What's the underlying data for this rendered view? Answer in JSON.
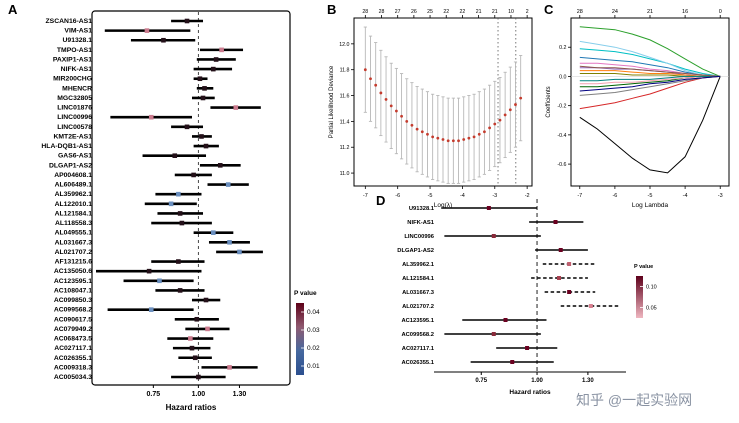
{
  "figure": {
    "watermark": "知乎 @一起实验网"
  },
  "panels": {
    "a": "A",
    "b": "B",
    "c": "C",
    "d": "D"
  },
  "chart_data": [
    {
      "id": "A",
      "type": "forest",
      "xlabel": "Hazard ratios",
      "xlim": [
        0.52,
        1.75
      ],
      "ref_line": 1.0,
      "xticks": [
        0.75,
        1.0,
        1.3
      ],
      "xtick_labels": [
        "0.75",
        "1.00",
        "1.30"
      ],
      "legend": {
        "title": "P value",
        "tick_labels": [
          "0.04",
          "0.03",
          "0.02",
          "0.01"
        ],
        "colors": [
          "#5e0018",
          "#8f5a70",
          "#46699f",
          "#2c4f8f"
        ]
      },
      "rows": [
        {
          "label": "ZSCAN16-AS1",
          "hr": 0.93,
          "lo": 0.84,
          "hi": 1.03,
          "color": "#241019"
        },
        {
          "label": "VIM-AS1",
          "hr": 0.72,
          "lo": 0.55,
          "hi": 0.95,
          "color": "#cb7b8e"
        },
        {
          "label": "U91328.1",
          "hr": 0.8,
          "lo": 0.65,
          "hi": 0.98,
          "color": "#241019"
        },
        {
          "label": "TMPO-AS1",
          "hr": 1.16,
          "lo": 1.01,
          "hi": 1.33,
          "color": "#cb7b8e"
        },
        {
          "label": "PAXIP1-AS1",
          "hr": 1.12,
          "lo": 0.99,
          "hi": 1.27,
          "color": "#241019"
        },
        {
          "label": "NIFK-AS1",
          "hr": 1.1,
          "lo": 0.97,
          "hi": 1.24,
          "color": "#241019"
        },
        {
          "label": "MIR200CHG",
          "hr": 1.01,
          "lo": 0.97,
          "hi": 1.06,
          "color": "#241019"
        },
        {
          "label": "MHENCR",
          "hr": 1.04,
          "lo": 0.99,
          "hi": 1.1,
          "color": "#241019"
        },
        {
          "label": "MGC32805",
          "hr": 1.03,
          "lo": 0.96,
          "hi": 1.11,
          "color": "#241019"
        },
        {
          "label": "LINC01876",
          "hr": 1.27,
          "lo": 1.08,
          "hi": 1.49,
          "color": "#cb7b8e"
        },
        {
          "label": "LINC00996",
          "hr": 0.74,
          "lo": 0.57,
          "hi": 0.96,
          "color": "#cb7b8e"
        },
        {
          "label": "LINC00578",
          "hr": 0.93,
          "lo": 0.84,
          "hi": 1.03,
          "color": "#241019"
        },
        {
          "label": "KMT2E-AS1",
          "hr": 1.02,
          "lo": 0.96,
          "hi": 1.09,
          "color": "#241019"
        },
        {
          "label": "HLA-DQB1-AS1",
          "hr": 1.05,
          "lo": 0.97,
          "hi": 1.14,
          "color": "#241019"
        },
        {
          "label": "GAS6-AS1",
          "hr": 0.86,
          "lo": 0.7,
          "hi": 1.05,
          "color": "#241019"
        },
        {
          "label": "DLGAP1-AS2",
          "hr": 1.15,
          "lo": 1.01,
          "hi": 1.31,
          "color": "#241019"
        },
        {
          "label": "AP004608.1",
          "hr": 0.97,
          "lo": 0.86,
          "hi": 1.09,
          "color": "#241019"
        },
        {
          "label": "AL606489.1",
          "hr": 1.21,
          "lo": 1.06,
          "hi": 1.38,
          "color": "#6a8fbf"
        },
        {
          "label": "AL359962.1",
          "hr": 0.88,
          "lo": 0.76,
          "hi": 1.02,
          "color": "#6a8fbf"
        },
        {
          "label": "AL122010.1",
          "hr": 0.84,
          "lo": 0.71,
          "hi": 0.99,
          "color": "#6a8fbf"
        },
        {
          "label": "AL121584.1",
          "hr": 0.89,
          "lo": 0.77,
          "hi": 1.03,
          "color": "#241019"
        },
        {
          "label": "AL118558.3",
          "hr": 0.9,
          "lo": 0.74,
          "hi": 1.09,
          "color": "#241019"
        },
        {
          "label": "AL049555.1",
          "hr": 1.1,
          "lo": 0.97,
          "hi": 1.25,
          "color": "#6a8fbf"
        },
        {
          "label": "AL031667.3",
          "hr": 1.22,
          "lo": 1.07,
          "hi": 1.39,
          "color": "#6a8fbf"
        },
        {
          "label": "AL021707.2",
          "hr": 1.3,
          "lo": 1.12,
          "hi": 1.51,
          "color": "#6a8fbf"
        },
        {
          "label": "AF131215.6",
          "hr": 0.88,
          "lo": 0.74,
          "hi": 1.04,
          "color": "#241019"
        },
        {
          "label": "AC135050.6",
          "hr": 0.73,
          "lo": 0.52,
          "hi": 1.02,
          "color": "#241019"
        },
        {
          "label": "AC123595.1",
          "hr": 0.78,
          "lo": 0.62,
          "hi": 0.97,
          "color": "#6a8fbf"
        },
        {
          "label": "AC108047.1",
          "hr": 0.89,
          "lo": 0.76,
          "hi": 1.04,
          "color": "#241019"
        },
        {
          "label": "AC099850.3",
          "hr": 1.05,
          "lo": 0.96,
          "hi": 1.15,
          "color": "#241019"
        },
        {
          "label": "AC099568.2",
          "hr": 0.74,
          "lo": 0.56,
          "hi": 0.97,
          "color": "#6a8fbf"
        },
        {
          "label": "AC090617.5",
          "hr": 0.99,
          "lo": 0.86,
          "hi": 1.14,
          "color": "#241019"
        },
        {
          "label": "AC079949.2",
          "hr": 1.06,
          "lo": 0.92,
          "hi": 1.22,
          "color": "#cb7b8e"
        },
        {
          "label": "AC068473.5",
          "hr": 0.95,
          "lo": 0.82,
          "hi": 1.1,
          "color": "#cb7b8e"
        },
        {
          "label": "AC027117.1",
          "hr": 0.96,
          "lo": 0.85,
          "hi": 1.08,
          "color": "#241019"
        },
        {
          "label": "AC026355.1",
          "hr": 0.98,
          "lo": 0.88,
          "hi": 1.09,
          "color": "#241019"
        },
        {
          "label": "AC009318.3",
          "hr": 1.22,
          "lo": 1.02,
          "hi": 1.46,
          "color": "#cb7b8e"
        },
        {
          "label": "AC005034.3",
          "hr": 1.0,
          "lo": 0.84,
          "hi": 1.19,
          "color": "#241019"
        }
      ]
    },
    {
      "id": "B",
      "type": "scatter",
      "xlabel": "Log(λ)",
      "ylabel": "Partial Likelihood Deviance",
      "xlim": [
        -7.35,
        -1.85
      ],
      "ylim": [
        10.9,
        12.2
      ],
      "xticks": [
        -7,
        -6,
        -5,
        -4,
        -3,
        -2
      ],
      "yticks": [
        11.0,
        11.2,
        11.4,
        11.6,
        11.8,
        12.0
      ],
      "ytick_labels": [
        "11.0",
        "11.2",
        "11.4",
        "11.6",
        "11.8",
        "12.0"
      ],
      "top_ticks": {
        "x": [
          -7,
          -6.5,
          -6,
          -5.5,
          -5,
          -4.5,
          -4,
          -3.5,
          -3,
          -2.5,
          -2
        ],
        "labels": [
          "28",
          "28",
          "27",
          "26",
          "25",
          "22",
          "22",
          "21",
          "21",
          "10",
          "2"
        ]
      },
      "vlines": [
        -2.9,
        -2.35
      ],
      "x": [
        -7.0,
        -6.84,
        -6.68,
        -6.52,
        -6.36,
        -6.2,
        -6.04,
        -5.88,
        -5.72,
        -5.56,
        -5.4,
        -5.24,
        -5.08,
        -4.92,
        -4.76,
        -4.6,
        -4.44,
        -4.28,
        -4.12,
        -3.96,
        -3.8,
        -3.64,
        -3.48,
        -3.32,
        -3.16,
        -3.0,
        -2.84,
        -2.68,
        -2.52,
        -2.36,
        -2.2
      ],
      "y": [
        11.8,
        11.73,
        11.68,
        11.62,
        11.57,
        11.52,
        11.48,
        11.44,
        11.4,
        11.37,
        11.34,
        11.32,
        11.3,
        11.28,
        11.27,
        11.26,
        11.25,
        11.25,
        11.25,
        11.26,
        11.27,
        11.28,
        11.3,
        11.32,
        11.35,
        11.38,
        11.41,
        11.45,
        11.49,
        11.53,
        11.58
      ],
      "err": 0.33,
      "point_color": "#c43c2e",
      "bar_color": "#b8b8b8"
    },
    {
      "id": "C",
      "type": "line",
      "xlabel": "Log Lambda",
      "ylabel": "Coefficients",
      "xlim": [
        -7.25,
        -2.75
      ],
      "ylim": [
        -0.75,
        0.4
      ],
      "xticks": [
        -7,
        -6,
        -5,
        -4,
        -3
      ],
      "yticks": [
        0.2,
        0.0,
        -0.2,
        -0.4,
        -0.6
      ],
      "ytick_labels": [
        "0.2",
        "0.0",
        "-0.2",
        "-0.4",
        "-0.6"
      ],
      "top_ticks": {
        "x": [
          -7,
          -6,
          -5,
          -4,
          -3
        ],
        "labels": [
          "28",
          "24",
          "21",
          "16",
          "0"
        ]
      },
      "series_x": [
        -7,
        -6.5,
        -6,
        -5.5,
        -5,
        -4.5,
        -4,
        -3.5,
        -3
      ],
      "series": [
        {
          "color": "#000000",
          "y": [
            -0.28,
            -0.36,
            -0.46,
            -0.56,
            -0.64,
            -0.66,
            -0.55,
            -0.3,
            0
          ]
        },
        {
          "color": "#2ca02c",
          "y": [
            0.34,
            0.33,
            0.32,
            0.29,
            0.25,
            0.19,
            0.12,
            0.05,
            0
          ]
        },
        {
          "color": "#00bfc4",
          "y": [
            0.19,
            0.18,
            0.17,
            0.15,
            0.12,
            0.09,
            0.05,
            0.02,
            0
          ]
        },
        {
          "color": "#d62728",
          "y": [
            -0.22,
            -0.2,
            -0.18,
            -0.15,
            -0.12,
            -0.08,
            -0.04,
            -0.01,
            0
          ]
        },
        {
          "color": "#1f77b4",
          "y": [
            0.13,
            0.12,
            0.11,
            0.1,
            0.08,
            0.06,
            0.03,
            0.01,
            0
          ]
        },
        {
          "color": "#e377c2",
          "y": [
            0.09,
            0.09,
            0.08,
            0.07,
            0.05,
            0.04,
            0.02,
            0.01,
            0
          ]
        },
        {
          "color": "#7f7f7f",
          "y": [
            -0.13,
            -0.12,
            -0.11,
            -0.09,
            -0.07,
            -0.05,
            -0.03,
            -0.01,
            0
          ]
        },
        {
          "color": "#9467bd",
          "y": [
            0.06,
            0.06,
            0.05,
            0.05,
            0.04,
            0.03,
            0.01,
            0,
            0
          ]
        },
        {
          "color": "#006400",
          "y": [
            -0.07,
            -0.07,
            -0.06,
            -0.05,
            -0.04,
            -0.03,
            -0.01,
            0,
            0
          ]
        },
        {
          "color": "#ff7f0e",
          "y": [
            0.04,
            0.04,
            0.04,
            0.03,
            0.02,
            0.02,
            0.01,
            0,
            0
          ]
        },
        {
          "color": "#87ceeb",
          "y": [
            0.24,
            0.22,
            0.2,
            0.17,
            0.13,
            0.09,
            0.04,
            0.01,
            0
          ]
        },
        {
          "color": "#f4a0b0",
          "y": [
            -0.05,
            -0.05,
            -0.04,
            -0.04,
            -0.03,
            -0.02,
            -0.01,
            0,
            0
          ]
        },
        {
          "color": "#808000",
          "y": [
            0.02,
            0.02,
            0.02,
            0.01,
            0.01,
            0.01,
            0,
            0,
            0
          ]
        },
        {
          "color": "#008080",
          "y": [
            -0.03,
            -0.03,
            -0.02,
            -0.02,
            -0.02,
            -0.01,
            0,
            0,
            0
          ]
        },
        {
          "color": "#8c564b",
          "y": [
            0.07,
            0.06,
            0.06,
            0.05,
            0.04,
            0.03,
            0.02,
            0.01,
            0
          ]
        },
        {
          "color": "#000080",
          "y": [
            -0.1,
            -0.09,
            -0.08,
            -0.07,
            -0.05,
            -0.04,
            -0.02,
            -0.01,
            0
          ]
        }
      ]
    },
    {
      "id": "D",
      "type": "forest",
      "xlabel": "Hazard ratios",
      "xlim": [
        0.6,
        1.55
      ],
      "ref_line": 1.0,
      "xticks": [
        0.75,
        1.0,
        1.3
      ],
      "xtick_labels": [
        "0.75",
        "1.00",
        "1.30"
      ],
      "legend": {
        "title": "P value",
        "tick_labels": [
          "0.10",
          "0.05"
        ],
        "colors": [
          "#5e001b",
          "#efb6c0"
        ]
      },
      "rows": [
        {
          "label": "U91328.1",
          "hr": 0.78,
          "lo": 0.61,
          "hi": 1.0,
          "color": "#6b0020"
        },
        {
          "label": "NIFK-AS1",
          "hr": 1.1,
          "lo": 0.96,
          "hi": 1.27,
          "color": "#6b0020"
        },
        {
          "label": "LINC00996",
          "hr": 0.8,
          "lo": 0.62,
          "hi": 1.02,
          "color": "#8a2a3a"
        },
        {
          "label": "DLGAP1-AS2",
          "hr": 1.13,
          "lo": 0.99,
          "hi": 1.3,
          "color": "#6b0020"
        },
        {
          "label": "AL359962.1",
          "hr": 1.18,
          "lo": 1.03,
          "hi": 1.36,
          "color": "#c06070",
          "dash": true
        },
        {
          "label": "AL121584.1",
          "hr": 1.12,
          "lo": 0.97,
          "hi": 1.3,
          "color": "#a84050",
          "dash": true
        },
        {
          "label": "AL031667.3",
          "hr": 1.18,
          "lo": 1.04,
          "hi": 1.35,
          "color": "#6b0020",
          "dash": true
        },
        {
          "label": "AL021707.2",
          "hr": 1.32,
          "lo": 1.13,
          "hi": 1.52,
          "color": "#d98090",
          "dash": true
        },
        {
          "label": "AC123595.1",
          "hr": 0.85,
          "lo": 0.68,
          "hi": 1.05,
          "color": "#6b0020"
        },
        {
          "label": "AC099568.2",
          "hr": 0.8,
          "lo": 0.62,
          "hi": 1.02,
          "color": "#8a2a3a"
        },
        {
          "label": "AC027117.1",
          "hr": 0.95,
          "lo": 0.81,
          "hi": 1.11,
          "color": "#6b0020"
        },
        {
          "label": "AC026355.1",
          "hr": 0.88,
          "lo": 0.71,
          "hi": 1.09,
          "color": "#6b0020"
        }
      ]
    }
  ]
}
